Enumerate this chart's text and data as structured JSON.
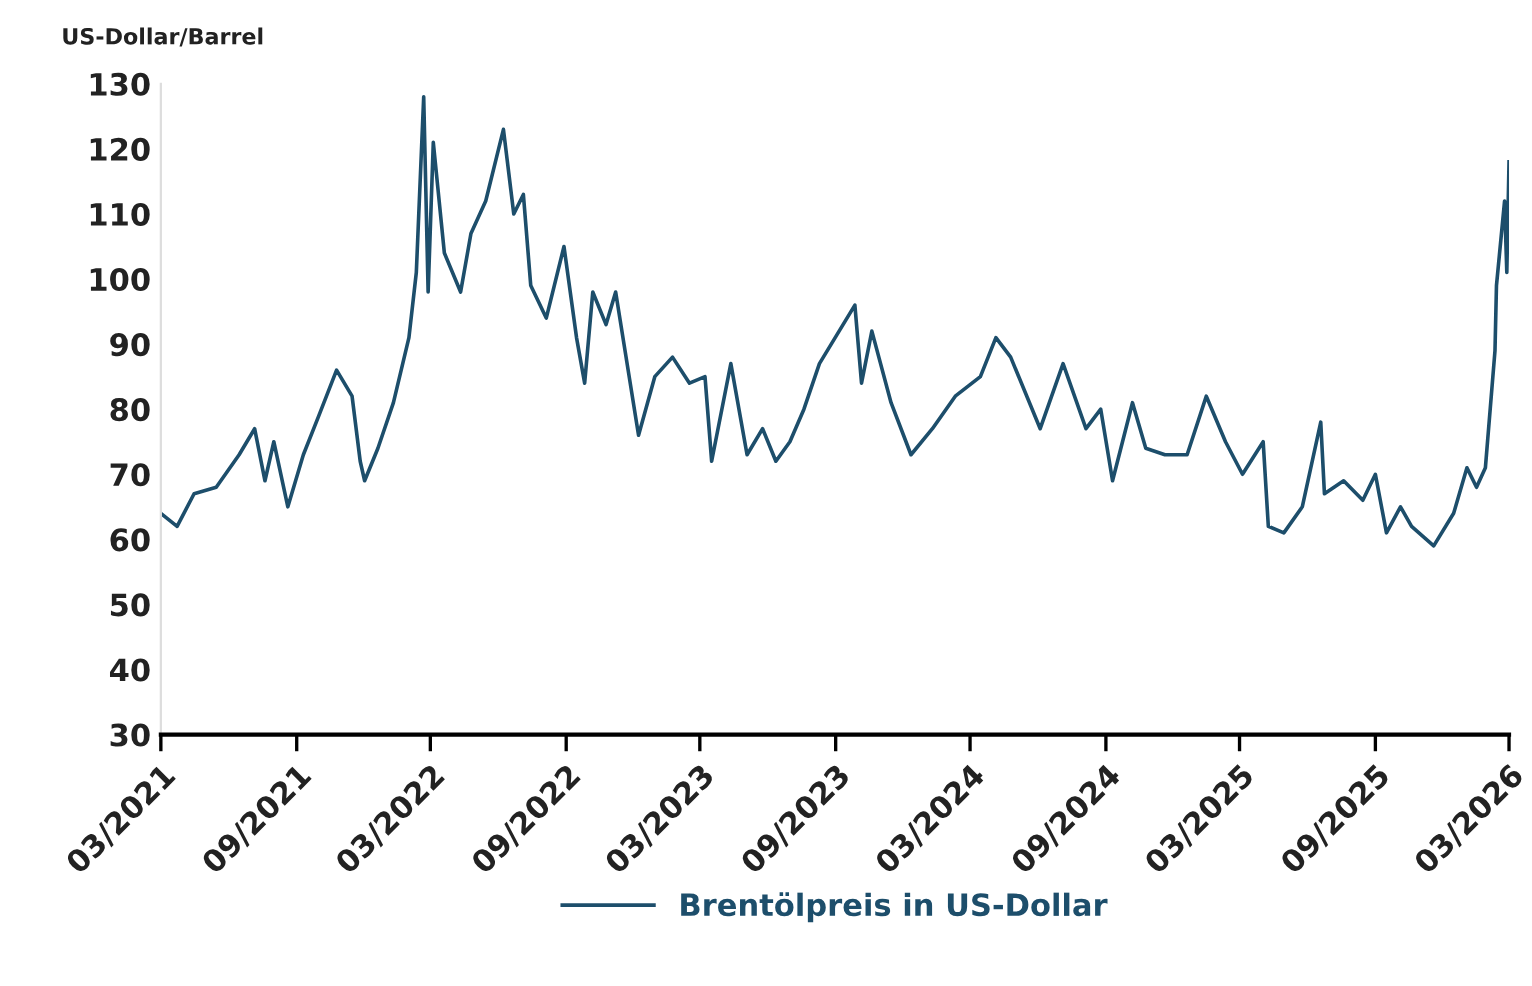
{
  "chart_data": {
    "type": "line",
    "ylabel": "US-Dollar/Barrel",
    "x": [
      "2021-03-01",
      "2021-03-23",
      "2021-04-15",
      "2021-05-15",
      "2021-06-15",
      "2021-07-06",
      "2021-07-20",
      "2021-08-01",
      "2021-08-20",
      "2021-09-10",
      "2021-10-01",
      "2021-10-25",
      "2021-11-15",
      "2021-11-26",
      "2021-12-02",
      "2021-12-20",
      "2022-01-10",
      "2022-01-31",
      "2022-02-10",
      "2022-02-20",
      "2022-02-26",
      "2022-03-05",
      "2022-03-20",
      "2022-04-11",
      "2022-04-25",
      "2022-05-15",
      "2022-06-08",
      "2022-06-22",
      "2022-07-05",
      "2022-07-15",
      "2022-08-05",
      "2022-08-29",
      "2022-09-15",
      "2022-09-26",
      "2022-10-07",
      "2022-10-25",
      "2022-11-07",
      "2022-12-08",
      "2022-12-30",
      "2023-01-23",
      "2023-02-15",
      "2023-03-08",
      "2023-03-17",
      "2023-04-12",
      "2023-05-04",
      "2023-05-25",
      "2023-06-12",
      "2023-07-01",
      "2023-07-20",
      "2023-08-10",
      "2023-09-27",
      "2023-10-06",
      "2023-10-20",
      "2023-11-15",
      "2023-12-12",
      "2024-01-10",
      "2024-02-10",
      "2024-03-15",
      "2024-04-05",
      "2024-04-25",
      "2024-06-04",
      "2024-07-05",
      "2024-08-05",
      "2024-08-25",
      "2024-09-10",
      "2024-10-07",
      "2024-10-25",
      "2024-11-20",
      "2024-12-20",
      "2025-01-15",
      "2025-02-10",
      "2025-03-05",
      "2025-04-02",
      "2025-04-09",
      "2025-04-30",
      "2025-05-25",
      "2025-06-19",
      "2025-06-24",
      "2025-07-20",
      "2025-08-15",
      "2025-09-01",
      "2025-09-16",
      "2025-10-05",
      "2025-10-20",
      "2025-11-19",
      "2025-12-16",
      "2026-01-03",
      "2026-01-16",
      "2026-01-28",
      "2026-02-10",
      "2026-02-12",
      "2026-02-23",
      "2026-02-26",
      "2026-03-01"
    ],
    "series": [
      {
        "name": "Brentölpreis in US-Dollar",
        "color": "#1d4e6b",
        "values": [
          64,
          62,
          67,
          68,
          73,
          77,
          69,
          75,
          65,
          73,
          79,
          86,
          82,
          72,
          69,
          74,
          81,
          91,
          101,
          128,
          98,
          121,
          104,
          98,
          107,
          112,
          123,
          110,
          113,
          99,
          94,
          105,
          91,
          84,
          98,
          93,
          98,
          76,
          85,
          88,
          84,
          85,
          72,
          87,
          73,
          77,
          72,
          75,
          80,
          87,
          96,
          84,
          92,
          81,
          73,
          77,
          82,
          85,
          91,
          88,
          77,
          87,
          77,
          80,
          69,
          81,
          74,
          73,
          73,
          82,
          75,
          70,
          75,
          62,
          61,
          65,
          78,
          67,
          69,
          66,
          70,
          61,
          65,
          62,
          59,
          64,
          71,
          68,
          71,
          89,
          99,
          112,
          101,
          118
        ]
      }
    ],
    "xlim": [
      "2021-03-01",
      "2026-03-01"
    ],
    "xticks": [
      {
        "value": "2021-03-01",
        "label": "03/2021"
      },
      {
        "value": "2021-09-01",
        "label": "09/2021"
      },
      {
        "value": "2022-03-01",
        "label": "03/2022"
      },
      {
        "value": "2022-09-01",
        "label": "09/2022"
      },
      {
        "value": "2023-03-01",
        "label": "03/2023"
      },
      {
        "value": "2023-09-01",
        "label": "09/2023"
      },
      {
        "value": "2024-03-01",
        "label": "03/2024"
      },
      {
        "value": "2024-09-01",
        "label": "09/2024"
      },
      {
        "value": "2025-03-01",
        "label": "03/2025"
      },
      {
        "value": "2025-09-01",
        "label": "09/2025"
      },
      {
        "value": "2026-03-01",
        "label": "03/2026"
      }
    ],
    "ylim": [
      30,
      130
    ],
    "yticks": [
      30,
      40,
      50,
      60,
      70,
      80,
      90,
      100,
      110,
      120,
      130
    ],
    "grid": false,
    "legend": "bottom",
    "marker": "none",
    "line_style": "solid"
  }
}
